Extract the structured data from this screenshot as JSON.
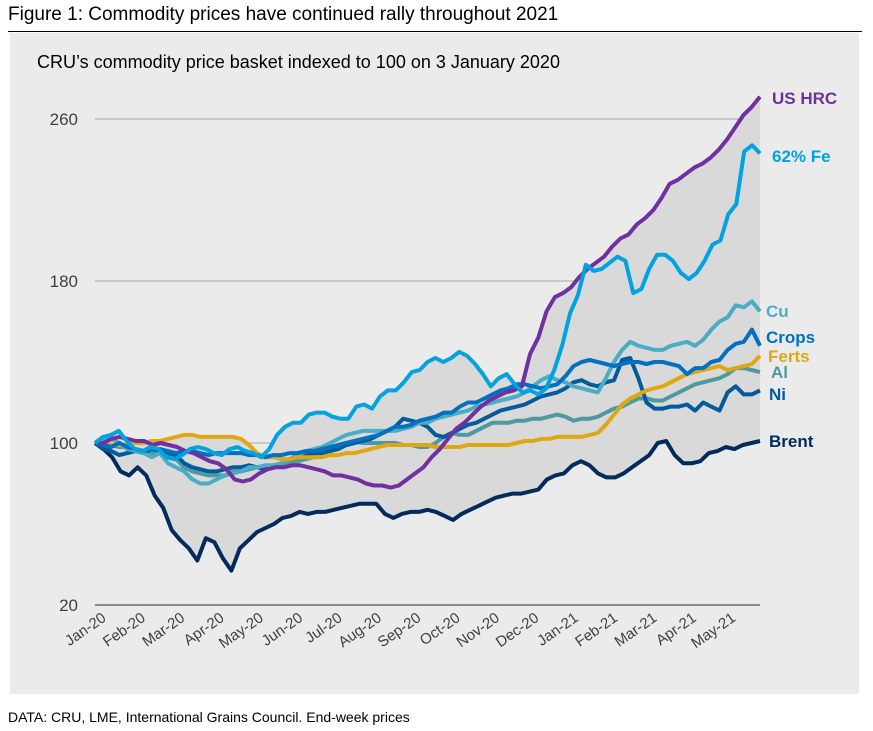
{
  "figure_title": "Figure 1: Commodity prices have continued rally throughout 2021",
  "footer": "DATA: CRU, LME, International Grains Council. End-week prices",
  "chart_data": {
    "type": "line",
    "title": "CRU’s commodity price basket indexed to 100 on 3 January 2020",
    "xlabel": "",
    "ylabel": "",
    "ylim": [
      20,
      260
    ],
    "yticks": [
      20,
      100,
      180,
      260
    ],
    "grid": "horizontal",
    "legend": "direct labels at right end of each line",
    "x_tick_labels": [
      "Jan-20",
      "Feb-20",
      "Mar-20",
      "Apr-20",
      "May-20",
      "Jun-20",
      "Jul-20",
      "Aug-20",
      "Sep-20",
      "Oct-20",
      "Nov-20",
      "Dec-20",
      "Jan-21",
      "Feb-21",
      "Mar-21",
      "Apr-21",
      "May-21"
    ],
    "x_frequency": "weekly (end-week), 3 Jan 2020 to end May 2021",
    "shaded_band": "range between max and min series each week",
    "series": [
      {
        "name": "US HRC",
        "color": "#7030a0",
        "values": [
          100,
          100,
          102,
          103,
          102,
          101,
          101,
          99,
          100,
          99,
          98,
          96,
          95,
          93,
          91,
          90,
          87,
          82,
          81,
          82,
          85,
          87,
          88,
          88,
          89,
          89,
          88,
          87,
          86,
          84,
          84,
          83,
          82,
          80,
          79,
          79,
          78,
          79,
          82,
          85,
          88,
          93,
          97,
          102,
          107,
          110,
          114,
          118,
          121,
          123,
          125,
          126,
          128,
          144,
          152,
          165,
          172,
          174,
          177,
          182,
          186,
          189,
          192,
          197,
          201,
          203,
          208,
          211,
          215,
          221,
          228,
          230,
          233,
          236,
          238,
          241,
          245,
          250,
          256,
          262,
          266,
          271
        ]
      },
      {
        "name": "62% Fe",
        "color": "#00a3e0",
        "values": [
          100,
          103,
          104,
          106,
          101,
          97,
          96,
          98,
          97,
          93,
          92,
          94,
          97,
          98,
          97,
          95,
          94,
          97,
          98,
          96,
          95,
          93,
          97,
          104,
          108,
          110,
          110,
          114,
          115,
          115,
          113,
          112,
          112,
          118,
          119,
          117,
          123,
          126,
          126,
          130,
          135,
          136,
          140,
          142,
          140,
          142,
          145,
          143,
          139,
          134,
          128,
          132,
          134,
          129,
          125,
          126,
          124,
          127,
          136,
          148,
          164,
          173,
          188,
          185,
          186,
          189,
          192,
          190,
          174,
          176,
          186,
          193,
          193,
          190,
          184,
          181,
          184,
          190,
          198,
          200,
          213,
          218,
          244,
          247,
          243
        ]
      },
      {
        "name": "Cu",
        "color": "#4bacc6",
        "values": [
          100,
          101,
          102,
          100,
          97,
          96,
          95,
          93,
          95,
          90,
          88,
          86,
          82,
          80,
          80,
          82,
          84,
          85,
          86,
          88,
          88,
          89,
          89,
          90,
          92,
          94,
          96,
          97,
          98,
          100,
          102,
          104,
          105,
          106,
          106,
          106,
          106,
          106,
          107,
          108,
          110,
          110,
          112,
          113,
          114,
          115,
          116,
          118,
          119,
          120,
          121,
          122,
          123,
          125,
          128,
          131,
          133,
          131,
          130,
          128,
          127,
          126,
          125,
          132,
          140,
          146,
          150,
          148,
          147,
          146,
          146,
          148,
          149,
          150,
          148,
          151,
          156,
          160,
          162,
          168,
          167,
          170,
          165
        ]
      },
      {
        "name": "Crops",
        "color": "#0070c0",
        "values": [
          100,
          99,
          98,
          100,
          98,
          97,
          96,
          97,
          97,
          96,
          95,
          96,
          96,
          95,
          94,
          95,
          95,
          95,
          95,
          94,
          94,
          93,
          94,
          94,
          95,
          95,
          96,
          96,
          97,
          98,
          99,
          100,
          101,
          102,
          103,
          104,
          106,
          108,
          108,
          109,
          111,
          112,
          113,
          115,
          115,
          118,
          120,
          120,
          122,
          124,
          126,
          127,
          129,
          129,
          128,
          127,
          128,
          129,
          133,
          138,
          140,
          141,
          140,
          139,
          138,
          139,
          140,
          140,
          139,
          140,
          140,
          139,
          138,
          134,
          137,
          137,
          140,
          141,
          146,
          149,
          150,
          156,
          148
        ]
      },
      {
        "name": "Ferts",
        "color": "#dea814",
        "values": [
          100,
          100,
          99,
          99,
          99,
          100,
          100,
          101,
          101,
          102,
          103,
          104,
          104,
          103,
          103,
          103,
          103,
          103,
          102,
          99,
          95,
          93,
          93,
          92,
          92,
          93,
          93,
          93,
          93,
          94,
          94,
          95,
          95,
          96,
          97,
          98,
          99,
          99,
          99,
          99,
          99,
          99,
          98,
          98,
          98,
          98,
          99,
          99,
          99,
          99,
          99,
          99,
          100,
          101,
          101,
          102,
          102,
          103,
          103,
          103,
          103,
          104,
          105,
          109,
          114,
          119,
          122,
          124,
          126,
          127,
          128,
          130,
          132,
          134,
          135,
          136,
          137,
          138,
          136,
          137,
          138,
          139,
          143
        ]
      },
      {
        "name": "Al",
        "color": "#4f9aa0",
        "values": [
          100,
          100,
          99,
          98,
          98,
          97,
          96,
          95,
          96,
          95,
          92,
          88,
          86,
          85,
          84,
          84,
          84,
          86,
          86,
          87,
          88,
          88,
          89,
          89,
          90,
          91,
          92,
          93,
          95,
          97,
          99,
          100,
          101,
          100,
          100,
          100,
          100,
          100,
          99,
          99,
          98,
          98,
          100,
          103,
          105,
          104,
          104,
          106,
          108,
          110,
          110,
          110,
          111,
          111,
          112,
          112,
          113,
          114,
          113,
          111,
          112,
          112,
          113,
          115,
          117,
          118,
          120,
          122,
          122,
          121,
          121,
          123,
          125,
          127,
          129,
          130,
          131,
          132,
          134,
          137,
          137,
          136,
          135
        ]
      },
      {
        "name": "Ni",
        "color": "#005a9c",
        "values": [
          100,
          97,
          96,
          94,
          95,
          96,
          95,
          97,
          96,
          95,
          94,
          90,
          88,
          87,
          86,
          86,
          87,
          88,
          88,
          89,
          88,
          87,
          89,
          90,
          92,
          93,
          94,
          95,
          95,
          96,
          97,
          99,
          100,
          101,
          102,
          104,
          106,
          108,
          112,
          111,
          110,
          108,
          104,
          103,
          105,
          107,
          109,
          110,
          112,
          114,
          116,
          117,
          118,
          119,
          121,
          123,
          124,
          125,
          127,
          130,
          131,
          129,
          128,
          130,
          131,
          141,
          142,
          132,
          120,
          117,
          117,
          118,
          118,
          119,
          116,
          120,
          118,
          116,
          125,
          128,
          124,
          124,
          126
        ]
      },
      {
        "name": "Brent",
        "color": "#002b5c",
        "values": [
          100,
          97,
          93,
          86,
          84,
          88,
          84,
          74,
          68,
          57,
          52,
          48,
          42,
          53,
          51,
          43,
          37,
          48,
          52,
          56,
          58,
          60,
          63,
          64,
          66,
          65,
          66,
          66,
          67,
          68,
          69,
          70,
          70,
          70,
          65,
          63,
          65,
          66,
          66,
          67,
          66,
          64,
          62,
          65,
          67,
          69,
          71,
          73,
          74,
          75,
          75,
          76,
          77,
          82,
          84,
          85,
          89,
          91,
          89,
          85,
          83,
          83,
          85,
          88,
          91,
          94,
          100,
          101,
          94,
          90,
          90,
          91,
          95,
          96,
          98,
          97,
          99,
          100,
          101
        ]
      }
    ]
  }
}
